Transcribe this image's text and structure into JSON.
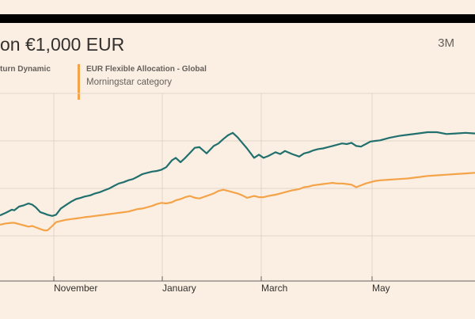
{
  "header": {
    "title": "on €1,000 EUR",
    "range_button": "3M"
  },
  "legend": [
    {
      "name": "turn Dynamic",
      "sub": "",
      "color": "#21706e"
    },
    {
      "name": "EUR Flexible Allocation - Global",
      "sub": "Morningstar category",
      "color": "#f4a348"
    }
  ],
  "chart_data": {
    "type": "line",
    "title": "on €1,000 EUR",
    "xlabel": "",
    "ylabel": "",
    "x_ticks": [
      "November",
      "January",
      "March",
      "May"
    ],
    "grid": true,
    "series": [
      {
        "name": "turn Dynamic",
        "color": "#21706e",
        "values": [
          0.05,
          0.09,
          0.14,
          0.13,
          0.19,
          0.21,
          0.24,
          0.22,
          0.18,
          0.1,
          0.08,
          0.06,
          0.04,
          0.06,
          0.16,
          0.22,
          0.27,
          0.31,
          0.33,
          0.35,
          0.37,
          0.4,
          0.42,
          0.45,
          0.48,
          0.52,
          0.56,
          0.58,
          0.61,
          0.63,
          0.67,
          0.71,
          0.73,
          0.75,
          0.76,
          0.78,
          0.82,
          0.93,
          0.97,
          0.9,
          0.97,
          1.05,
          1.13,
          1.14,
          1.04,
          1.16,
          1.2,
          1.27,
          1.33,
          1.37,
          1.3,
          1.21,
          1.12,
          0.97,
          1.02,
          0.97,
          1.0,
          1.06,
          1.03,
          1.08,
          1.03,
          0.99,
          1.04,
          1.06,
          1.09,
          1.11,
          1.12,
          1.14,
          1.16,
          1.18,
          1.2,
          1.19,
          1.21,
          1.16,
          1.15,
          1.19,
          1.23,
          1.24,
          1.25,
          1.29,
          1.32,
          1.34,
          1.36,
          1.38,
          1.38,
          1.35,
          1.36,
          1.37,
          1.36
        ],
        "values_x": [
          0,
          0.012,
          0.025,
          0.03,
          0.04,
          0.05,
          0.06,
          0.068,
          0.075,
          0.085,
          0.093,
          0.1,
          0.11,
          0.118,
          0.128,
          0.14,
          0.15,
          0.16,
          0.17,
          0.178,
          0.19,
          0.2,
          0.21,
          0.22,
          0.23,
          0.24,
          0.25,
          0.26,
          0.27,
          0.28,
          0.29,
          0.3,
          0.31,
          0.32,
          0.33,
          0.34,
          0.35,
          0.362,
          0.37,
          0.38,
          0.39,
          0.4,
          0.41,
          0.42,
          0.435,
          0.45,
          0.46,
          0.47,
          0.48,
          0.49,
          0.5,
          0.51,
          0.52,
          0.535,
          0.545,
          0.555,
          0.565,
          0.58,
          0.59,
          0.6,
          0.615,
          0.63,
          0.64,
          0.65,
          0.66,
          0.67,
          0.68,
          0.69,
          0.7,
          0.71,
          0.72,
          0.73,
          0.74,
          0.75,
          0.76,
          0.77,
          0.78,
          0.79,
          0.8,
          0.82,
          0.84,
          0.86,
          0.88,
          0.9,
          0.92,
          0.94,
          0.96,
          0.98,
          1.0
        ]
      },
      {
        "name": "EUR Flexible Allocation - Global",
        "color": "#f4a348",
        "values": [
          -0.1,
          -0.08,
          -0.07,
          -0.07,
          -0.09,
          -0.11,
          -0.13,
          -0.12,
          -0.14,
          -0.17,
          -0.19,
          -0.19,
          -0.12,
          -0.06,
          -0.04,
          -0.02,
          -0.01,
          0.0,
          0.01,
          0.02,
          0.03,
          0.04,
          0.05,
          0.06,
          0.07,
          0.08,
          0.09,
          0.1,
          0.11,
          0.13,
          0.15,
          0.16,
          0.18,
          0.2,
          0.23,
          0.25,
          0.24,
          0.26,
          0.29,
          0.31,
          0.34,
          0.36,
          0.33,
          0.32,
          0.36,
          0.4,
          0.44,
          0.46,
          0.44,
          0.42,
          0.4,
          0.37,
          0.33,
          0.36,
          0.34,
          0.34,
          0.36,
          0.38,
          0.4,
          0.42,
          0.45,
          0.47,
          0.5,
          0.51,
          0.53,
          0.54,
          0.55,
          0.56,
          0.57,
          0.56,
          0.56,
          0.55,
          0.54,
          0.5,
          0.53,
          0.56,
          0.58,
          0.6,
          0.61,
          0.62,
          0.63,
          0.64,
          0.66,
          0.68,
          0.69,
          0.7,
          0.71,
          0.72,
          0.73
        ],
        "values_x": [
          0,
          0.012,
          0.025,
          0.03,
          0.04,
          0.05,
          0.06,
          0.068,
          0.075,
          0.085,
          0.093,
          0.1,
          0.11,
          0.118,
          0.128,
          0.14,
          0.15,
          0.16,
          0.17,
          0.178,
          0.19,
          0.2,
          0.21,
          0.22,
          0.23,
          0.24,
          0.25,
          0.26,
          0.27,
          0.28,
          0.29,
          0.3,
          0.31,
          0.32,
          0.33,
          0.34,
          0.35,
          0.362,
          0.37,
          0.38,
          0.39,
          0.4,
          0.41,
          0.42,
          0.435,
          0.45,
          0.46,
          0.47,
          0.48,
          0.49,
          0.5,
          0.51,
          0.52,
          0.535,
          0.545,
          0.555,
          0.565,
          0.58,
          0.59,
          0.6,
          0.615,
          0.63,
          0.64,
          0.65,
          0.66,
          0.67,
          0.68,
          0.69,
          0.7,
          0.71,
          0.72,
          0.73,
          0.74,
          0.75,
          0.76,
          0.77,
          0.78,
          0.79,
          0.8,
          0.82,
          0.84,
          0.86,
          0.88,
          0.9,
          0.92,
          0.94,
          0.96,
          0.98,
          1.0
        ]
      }
    ]
  }
}
